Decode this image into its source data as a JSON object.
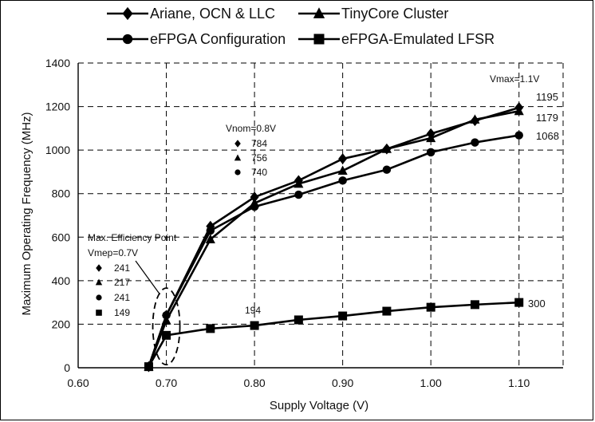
{
  "chart_data": {
    "type": "line",
    "xlabel": "Supply Voltage (V)",
    "ylabel": "Maximum Operating Frequency (MHz)",
    "xlim": [
      0.6,
      1.15
    ],
    "ylim": [
      0,
      1400
    ],
    "x_ticks": [
      "0.60",
      "0.70",
      "0.80",
      "0.90",
      "1.00",
      "1.10"
    ],
    "y_ticks": [
      "0",
      "200",
      "400",
      "600",
      "800",
      "1000",
      "1200",
      "1400"
    ],
    "grid": true,
    "legend_position": "top",
    "series": [
      {
        "name": "Ariane, OCN & LLC",
        "marker": "diamond",
        "x": [
          0.68,
          0.7,
          0.75,
          0.8,
          0.85,
          0.9,
          0.95,
          1.0,
          1.05,
          1.1
        ],
        "y": [
          5,
          241,
          650,
          784,
          860,
          960,
          1005,
          1075,
          1135,
          1195
        ]
      },
      {
        "name": "TinyCore Cluster",
        "marker": "triangle",
        "x": [
          0.68,
          0.7,
          0.75,
          0.8,
          0.85,
          0.9,
          0.95,
          1.0,
          1.05,
          1.1
        ],
        "y": [
          5,
          217,
          590,
          756,
          845,
          905,
          1005,
          1055,
          1140,
          1179
        ]
      },
      {
        "name": "eFPGA Configuration",
        "marker": "circle",
        "x": [
          0.68,
          0.7,
          0.75,
          0.8,
          0.85,
          0.9,
          0.95,
          1.0,
          1.05,
          1.1
        ],
        "y": [
          5,
          241,
          630,
          740,
          795,
          860,
          910,
          990,
          1035,
          1068
        ]
      },
      {
        "name": "eFPGA-Emulated LFSR",
        "marker": "square",
        "x": [
          0.68,
          0.7,
          0.75,
          0.8,
          0.85,
          0.9,
          0.95,
          1.0,
          1.05,
          1.1
        ],
        "y": [
          5,
          149,
          180,
          194,
          220,
          238,
          260,
          278,
          290,
          300
        ]
      }
    ],
    "annotations": {
      "vmax_label": "Vmax=1.1V",
      "vmax_values": [
        "1195",
        "1179",
        "1068"
      ],
      "lfsr_end": "300",
      "lfsr_vnom": "194",
      "vnom_label": "Vnom=0.8V",
      "vnom_values": [
        "784",
        "756",
        "740"
      ],
      "mep_title": "Max. Efficiency Point",
      "mep_label": "Vmep=0.7V",
      "mep_values": [
        "241",
        "217",
        "241",
        "149"
      ]
    }
  }
}
